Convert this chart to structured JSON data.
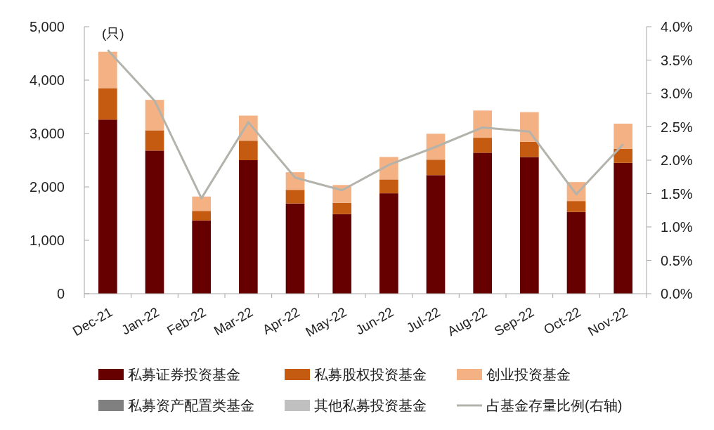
{
  "chart_data": {
    "type": "bar",
    "stacked": true,
    "ylabel": "(只)",
    "categories": [
      "Dec-21",
      "Jan-22",
      "Feb-22",
      "Mar-22",
      "Apr-22",
      "May-22",
      "Jun-22",
      "Jul-22",
      "Aug-22",
      "Sep-22",
      "Oct-22",
      "Nov-22"
    ],
    "series": [
      {
        "name": "私募证券投资基金",
        "color": "#660000",
        "values": [
          3260,
          2680,
          1370,
          2500,
          1690,
          1490,
          1880,
          2220,
          2640,
          2560,
          1530,
          2450
        ]
      },
      {
        "name": "私募股权投资基金",
        "color": "#c55a11",
        "values": [
          590,
          380,
          180,
          365,
          255,
          210,
          260,
          290,
          280,
          285,
          205,
          265
        ]
      },
      {
        "name": "创业投资基金",
        "color": "#f4b183",
        "values": [
          680,
          570,
          270,
          470,
          330,
          335,
          420,
          485,
          510,
          555,
          355,
          470
        ]
      },
      {
        "name": "私募资产配置类基金",
        "color": "#808080",
        "values": [
          0,
          0,
          0,
          0,
          0,
          0,
          0,
          0,
          0,
          0,
          0,
          0
        ]
      },
      {
        "name": "其他私募投资基金",
        "color": "#c0c0c0",
        "values": [
          0,
          0,
          0,
          0,
          0,
          0,
          0,
          0,
          0,
          0,
          0,
          0
        ]
      },
      {
        "name": "占基金存量比例(右轴)",
        "type": "line",
        "axis": "y2",
        "color": "#b3b3ab",
        "values": [
          3.65,
          2.89,
          1.43,
          2.57,
          1.74,
          1.55,
          1.93,
          2.2,
          2.49,
          2.43,
          1.49,
          2.24
        ]
      }
    ],
    "ylim": [
      0,
      5000
    ],
    "yticks": [
      {
        "value": 0,
        "label": "0"
      },
      {
        "value": 1000,
        "label": "1,000"
      },
      {
        "value": 2000,
        "label": "2,000"
      },
      {
        "value": 3000,
        "label": "3,000"
      },
      {
        "value": 4000,
        "label": "4,000"
      },
      {
        "value": 5000,
        "label": "5,000"
      }
    ],
    "y2lim": [
      0,
      4
    ],
    "y2ticks": [
      {
        "value": 0,
        "label": "0.0%"
      },
      {
        "value": 0.5,
        "label": "0.5%"
      },
      {
        "value": 1,
        "label": "1.0%"
      },
      {
        "value": 1.5,
        "label": "1.5%"
      },
      {
        "value": 2,
        "label": "2.0%"
      },
      {
        "value": 2.5,
        "label": "2.5%"
      },
      {
        "value": 3,
        "label": "3.0%"
      },
      {
        "value": 3.5,
        "label": "3.5%"
      },
      {
        "value": 4,
        "label": "4.0%"
      }
    ],
    "legend": "bottom",
    "grid": false
  }
}
